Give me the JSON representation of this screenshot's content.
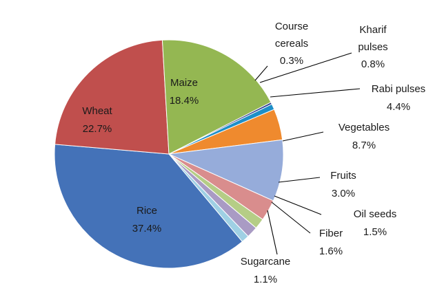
{
  "chart_data": {
    "type": "pie",
    "title": "",
    "legend": "none",
    "slices": [
      {
        "label": "Course cereals",
        "line1": "Course",
        "line2": "cereals",
        "value": 0.3,
        "pct_label": "0.3%",
        "color": "#2f3f92"
      },
      {
        "label": "Kharif pulses",
        "line1": "Kharif",
        "line2": "pulses",
        "value": 0.8,
        "pct_label": "0.8%",
        "color": "#1e8fc8"
      },
      {
        "label": "Rabi pulses",
        "line1": "Rabi pulses",
        "line2": "",
        "value": 4.4,
        "pct_label": "4.4%",
        "color": "#ef8a2e"
      },
      {
        "label": "Vegetables",
        "line1": "Vegetables",
        "line2": "",
        "value": 8.7,
        "pct_label": "8.7%",
        "color": "#96acda"
      },
      {
        "label": "Fruits",
        "line1": "Fruits",
        "line2": "",
        "value": 3.0,
        "pct_label": "3.0%",
        "color": "#d98d8d"
      },
      {
        "label": "Oil seeds",
        "line1": "Oil seeds",
        "line2": "",
        "value": 1.5,
        "pct_label": "1.5%",
        "color": "#b5cd86"
      },
      {
        "label": "Fiber",
        "line1": "Fiber",
        "line2": "",
        "value": 1.6,
        "pct_label": "1.6%",
        "color": "#a99bc4"
      },
      {
        "label": "Sugarcane",
        "line1": "Sugarcane",
        "line2": "",
        "value": 1.1,
        "pct_label": "1.1%",
        "color": "#9fd0e4"
      },
      {
        "label": "Rice",
        "line1": "Rice",
        "line2": "",
        "value": 37.4,
        "pct_label": "37.4%",
        "color": "#4472b8"
      },
      {
        "label": "Wheat",
        "line1": "Wheat",
        "line2": "",
        "value": 22.7,
        "pct_label": "22.7%",
        "color": "#c04f4d"
      },
      {
        "label": "Maize",
        "line1": "Maize",
        "line2": "",
        "value": 18.4,
        "pct_label": "18.4%",
        "color": "#94b752"
      }
    ]
  }
}
